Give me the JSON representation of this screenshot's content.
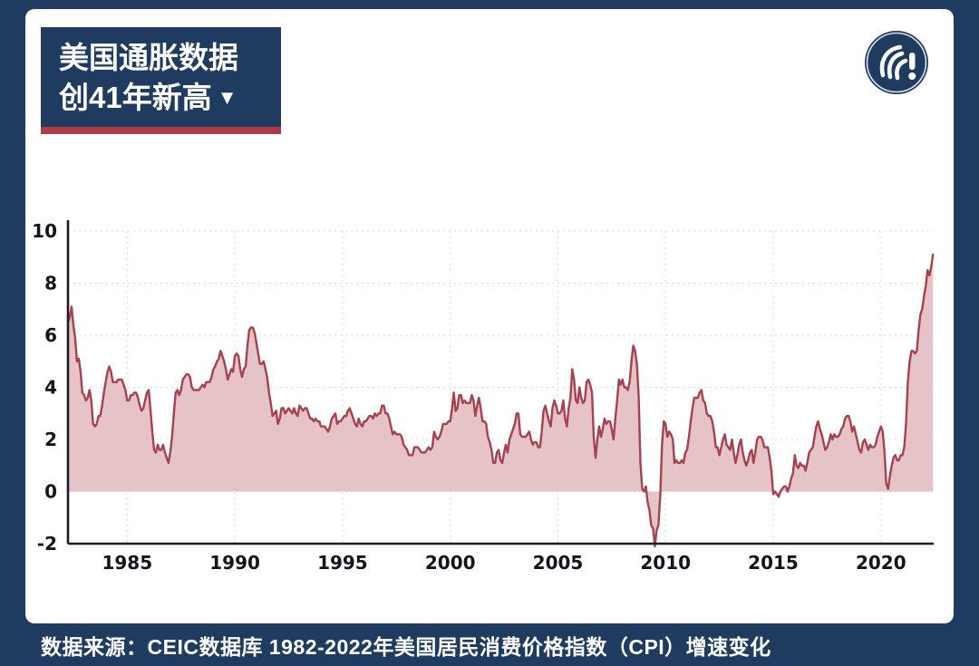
{
  "header": {
    "title_line1": "美国通胀数据",
    "title_line2": "创41年新高",
    "dropdown_icon": "▼"
  },
  "footer": {
    "source_text": "数据来源：CEIC数据库 1982-2022年美国居民消费价格指数（CPI）增速变化"
  },
  "colors": {
    "background": "#1f3b5f",
    "accent_red": "#b13a4a",
    "line": "#a4424e",
    "fill": "#e6c3c7",
    "card": "#ffffff"
  },
  "chart_data": {
    "type": "area",
    "series_name": "US CPI YoY growth (%)",
    "unit": "%",
    "frequency": "monthly",
    "x_start": "1982-04",
    "xlim": [
      1982.25,
      2022.45
    ],
    "ylim": [
      -2,
      10
    ],
    "y_ticks": [
      -2,
      0,
      2,
      4,
      6,
      8,
      10
    ],
    "x_ticks": [
      1985,
      1990,
      1995,
      2000,
      2005,
      2010,
      2015,
      2020
    ],
    "grid": true,
    "legend": "none",
    "values": [
      6.5,
      6.7,
      7.1,
      6.4,
      5.9,
      5.0,
      5.1,
      4.6,
      3.8,
      3.7,
      3.5,
      3.6,
      3.9,
      3.5,
      2.6,
      2.5,
      2.6,
      2.9,
      2.9,
      3.3,
      3.8,
      4.2,
      4.6,
      4.8,
      4.6,
      4.2,
      4.2,
      4.2,
      4.3,
      4.3,
      4.3,
      4.1,
      3.9,
      3.5,
      3.5,
      3.7,
      3.7,
      3.8,
      3.8,
      3.6,
      3.3,
      3.1,
      3.2,
      3.5,
      3.8,
      3.9,
      3.1,
      2.3,
      1.6,
      1.5,
      1.8,
      1.6,
      1.6,
      1.8,
      1.5,
      1.3,
      1.1,
      1.5,
      2.1,
      3.0,
      3.8,
      3.9,
      3.7,
      3.9,
      4.3,
      4.4,
      4.5,
      4.5,
      4.4,
      4.0,
      3.9,
      3.9,
      3.9,
      3.9,
      4.0,
      4.1,
      4.0,
      4.2,
      4.2,
      4.2,
      4.4,
      4.7,
      4.8,
      5.0,
      5.1,
      5.4,
      5.2,
      5.0,
      4.7,
      4.3,
      4.5,
      4.7,
      4.6,
      5.2,
      5.3,
      5.2,
      4.7,
      4.4,
      4.7,
      4.8,
      5.6,
      6.2,
      6.3,
      6.3,
      6.1,
      5.7,
      5.3,
      4.9,
      4.9,
      5.0,
      4.7,
      4.4,
      3.8,
      3.4,
      2.9,
      3.0,
      3.1,
      2.6,
      2.8,
      3.2,
      3.2,
      3.0,
      3.1,
      3.2,
      3.1,
      3.0,
      3.2,
      3.0,
      2.9,
      3.3,
      3.2,
      3.1,
      3.2,
      3.2,
      3.0,
      2.8,
      2.8,
      2.7,
      2.8,
      2.7,
      2.7,
      2.5,
      2.5,
      2.5,
      2.4,
      2.3,
      2.5,
      2.8,
      2.9,
      3.0,
      2.6,
      2.7,
      2.7,
      2.8,
      2.9,
      2.9,
      3.1,
      3.2,
      3.0,
      2.8,
      2.6,
      2.5,
      2.8,
      2.6,
      2.5,
      2.7,
      2.7,
      2.8,
      2.9,
      2.9,
      2.8,
      3.0,
      2.9,
      3.0,
      3.0,
      3.3,
      3.3,
      3.0,
      3.0,
      2.8,
      2.5,
      2.2,
      2.3,
      2.2,
      2.2,
      2.2,
      2.1,
      1.8,
      1.7,
      1.6,
      1.4,
      1.4,
      1.4,
      1.7,
      1.7,
      1.7,
      1.6,
      1.5,
      1.5,
      1.5,
      1.6,
      1.7,
      1.6,
      1.7,
      2.3,
      2.1,
      2.0,
      2.1,
      2.3,
      2.6,
      2.6,
      2.6,
      2.7,
      2.7,
      3.2,
      3.8,
      3.1,
      3.2,
      3.7,
      3.7,
      3.4,
      3.5,
      3.4,
      3.4,
      3.4,
      3.7,
      3.5,
      2.9,
      3.3,
      3.6,
      3.2,
      2.7,
      2.7,
      2.6,
      2.1,
      1.9,
      1.6,
      1.1,
      1.1,
      1.5,
      1.6,
      1.2,
      1.1,
      1.5,
      1.8,
      1.5,
      2.0,
      2.2,
      2.4,
      2.6,
      3.0,
      3.0,
      2.2,
      2.1,
      2.1,
      2.1,
      2.2,
      2.3,
      2.0,
      1.8,
      1.9,
      1.9,
      1.7,
      1.7,
      2.3,
      3.1,
      3.3,
      3.0,
      2.7,
      2.5,
      3.2,
      3.5,
      3.3,
      3.0,
      3.0,
      3.1,
      3.5,
      2.8,
      2.5,
      3.2,
      3.6,
      4.7,
      4.3,
      3.5,
      3.4,
      4.0,
      3.6,
      3.4,
      3.5,
      4.2,
      4.3,
      4.1,
      3.8,
      2.1,
      1.3,
      2.0,
      2.5,
      2.1,
      2.4,
      2.8,
      2.6,
      2.7,
      2.7,
      2.4,
      2.0,
      2.8,
      3.5,
      4.3,
      4.1,
      4.3,
      4.0,
      4.0,
      3.9,
      4.2,
      5.0,
      5.6,
      5.4,
      4.9,
      3.7,
      1.1,
      0.1,
      0.0,
      0.2,
      -0.4,
      -0.7,
      -1.3,
      -1.4,
      -2.1,
      -1.5,
      -1.3,
      -0.2,
      1.8,
      2.7,
      2.6,
      2.1,
      2.3,
      2.2,
      2.0,
      1.1,
      1.2,
      1.1,
      1.1,
      1.2,
      1.1,
      1.5,
      1.6,
      2.1,
      2.7,
      3.2,
      3.6,
      3.6,
      3.6,
      3.8,
      3.9,
      3.5,
      3.4,
      3.0,
      2.9,
      2.9,
      2.7,
      2.3,
      1.7,
      1.7,
      1.4,
      1.7,
      2.0,
      2.2,
      1.8,
      1.7,
      1.6,
      2.0,
      1.5,
      1.1,
      1.4,
      1.8,
      2.0,
      1.5,
      1.2,
      1.0,
      1.2,
      1.5,
      1.6,
      1.1,
      1.5,
      2.0,
      2.1,
      2.1,
      2.0,
      1.7,
      1.7,
      1.7,
      1.3,
      0.8,
      -0.1,
      0.0,
      -0.1,
      -0.2,
      0.0,
      0.1,
      0.2,
      0.2,
      0.0,
      0.2,
      0.5,
      0.7,
      1.4,
      1.0,
      0.9,
      1.1,
      1.0,
      1.0,
      0.8,
      1.1,
      1.5,
      1.6,
      1.7,
      2.1,
      2.5,
      2.7,
      2.4,
      2.2,
      1.9,
      1.6,
      1.7,
      1.9,
      2.2,
      2.0,
      2.2,
      2.1,
      2.1,
      2.2,
      2.4,
      2.5,
      2.8,
      2.9,
      2.9,
      2.7,
      2.3,
      2.5,
      2.2,
      1.9,
      1.6,
      1.5,
      1.9,
      2.0,
      1.8,
      1.6,
      1.8,
      1.7,
      1.7,
      1.8,
      2.1,
      2.3,
      2.5,
      2.3,
      1.5,
      0.3,
      0.1,
      0.6,
      1.0,
      1.3,
      1.4,
      1.2,
      1.2,
      1.4,
      1.4,
      1.7,
      2.6,
      4.2,
      5.0,
      5.4,
      5.4,
      5.3,
      5.4,
      6.2,
      6.8,
      7.0,
      7.5,
      7.9,
      8.5,
      8.3,
      8.6,
      9.1
    ]
  }
}
